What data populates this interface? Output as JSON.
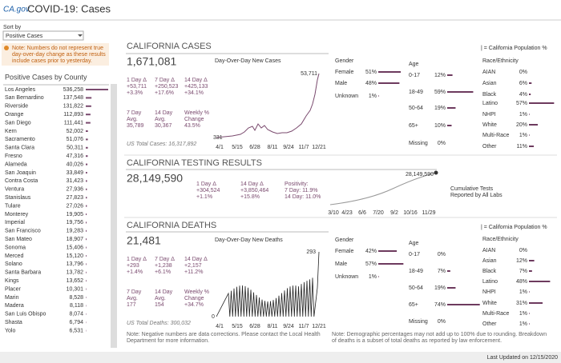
{
  "header": {
    "logo": "CA.gov",
    "title": "COVID-19: Cases",
    "updated": "Last Updated on 12/15/2020"
  },
  "sidebar": {
    "sort_label": "Sort by",
    "sort_value": "Positive Cases",
    "note": [
      "Note: Numbers do not represent true",
      "day-over-day change as these results",
      "include cases prior to yesterday."
    ],
    "list_title": "Positive Cases by County",
    "counties": [
      {
        "name": "Los Angeles",
        "value": 536258,
        "label": "536,258"
      },
      {
        "name": "San Bernardino",
        "value": 137548,
        "label": "137,548"
      },
      {
        "name": "Riverside",
        "value": 131822,
        "label": "131,822"
      },
      {
        "name": "Orange",
        "value": 112893,
        "label": "112,893"
      },
      {
        "name": "San Diego",
        "value": 111441,
        "label": "111,441"
      },
      {
        "name": "Kern",
        "value": 52002,
        "label": "52,002"
      },
      {
        "name": "Sacramento",
        "value": 51076,
        "label": "51,076"
      },
      {
        "name": "Santa Clara",
        "value": 50311,
        "label": "50,311"
      },
      {
        "name": "Fresno",
        "value": 47316,
        "label": "47,316"
      },
      {
        "name": "Alameda",
        "value": 40026,
        "label": "40,026"
      },
      {
        "name": "San Joaquin",
        "value": 33849,
        "label": "33,849"
      },
      {
        "name": "Contra Costa",
        "value": 31423,
        "label": "31,423"
      },
      {
        "name": "Ventura",
        "value": 27936,
        "label": "27,936"
      },
      {
        "name": "Stanislaus",
        "value": 27823,
        "label": "27,823"
      },
      {
        "name": "Tulare",
        "value": 27026,
        "label": "27,026"
      },
      {
        "name": "Monterey",
        "value": 19905,
        "label": "19,905"
      },
      {
        "name": "Imperial",
        "value": 19756,
        "label": "19,756"
      },
      {
        "name": "San Francisco",
        "value": 19283,
        "label": "19,283"
      },
      {
        "name": "San Mateo",
        "value": 18907,
        "label": "18,907"
      },
      {
        "name": "Sonoma",
        "value": 15406,
        "label": "15,406"
      },
      {
        "name": "Merced",
        "value": 15120,
        "label": "15,120"
      },
      {
        "name": "Solano",
        "value": 13796,
        "label": "13,796"
      },
      {
        "name": "Santa Barbara",
        "value": 13782,
        "label": "13,782"
      },
      {
        "name": "Kings",
        "value": 13652,
        "label": "13,652"
      },
      {
        "name": "Placer",
        "value": 10301,
        "label": "10,301"
      },
      {
        "name": "Marin",
        "value": 8528,
        "label": "8,528"
      },
      {
        "name": "Madera",
        "value": 8118,
        "label": "8,118"
      },
      {
        "name": "San Luis Obispo",
        "value": 8074,
        "label": "8,074"
      },
      {
        "name": "Shasta",
        "value": 6794,
        "label": "6,794"
      },
      {
        "name": "Yolo",
        "value": 6531,
        "label": "6,531"
      }
    ]
  },
  "cases": {
    "title": "CALIFORNIA CASES",
    "total": "1,671,081",
    "chart_title": "Day-Over-Day New Cases",
    "chart_max": "53,711",
    "chart_min": "331",
    "x_labels": [
      "4/1",
      "5/15",
      "6/28",
      "8/11",
      "9/24",
      "11/7",
      "12/21"
    ],
    "stats": [
      {
        "label": [
          "1 Day Δ"
        ],
        "values": [
          "+53,711",
          "+3.3%"
        ]
      },
      {
        "label": [
          "7 Day Δ"
        ],
        "values": [
          "+250,523",
          "+17.6%"
        ]
      },
      {
        "label": [
          "14 Day Δ"
        ],
        "values": [
          "+425,133",
          "+34.1%"
        ]
      }
    ],
    "avgs": [
      {
        "label": [
          "7 Day",
          "Avg."
        ],
        "value": "35,789"
      },
      {
        "label": [
          "14 Day",
          "Avg."
        ],
        "value": "30,367"
      },
      {
        "label": [
          "Weekly %",
          "Change"
        ],
        "value": "43.5%"
      }
    ],
    "us_total": "US Total Cases: 16,317,892",
    "population_key": "| = California Population %",
    "gender": {
      "title": "Gender",
      "items": [
        {
          "name": "Female",
          "value": 51,
          "label": "51%"
        },
        {
          "name": "Male",
          "value": 48,
          "label": "48%"
        },
        {
          "name": "Unknown",
          "value": 1,
          "label": "1%"
        }
      ]
    },
    "age": {
      "title": "Age",
      "items": [
        {
          "name": "0-17",
          "value": 12,
          "label": "12%"
        },
        {
          "name": "18-49",
          "value": 59,
          "label": "59%"
        },
        {
          "name": "50-64",
          "value": 19,
          "label": "19%"
        },
        {
          "name": "65+",
          "value": 10,
          "label": "10%"
        },
        {
          "name": "Missing",
          "value": 0,
          "label": "0%"
        }
      ]
    },
    "race": {
      "title": "Race/Ethnicity",
      "items": [
        {
          "name": "AIAN",
          "value": 0,
          "label": "0%"
        },
        {
          "name": "Asian",
          "value": 6,
          "label": "6%"
        },
        {
          "name": "Black",
          "value": 4,
          "label": "4%"
        },
        {
          "name": "Latino",
          "value": 57,
          "label": "57%"
        },
        {
          "name": "NHPI",
          "value": 1,
          "label": "1%"
        },
        {
          "name": "White",
          "value": 20,
          "label": "20%"
        },
        {
          "name": "Multi-Race",
          "value": 1,
          "label": "1%"
        },
        {
          "name": "Other",
          "value": 11,
          "label": "11%"
        }
      ]
    }
  },
  "testing": {
    "title": "CALIFORNIA TESTING RESULTS",
    "total": "28,149,590",
    "chart_max": "28,149,590",
    "x_labels": [
      "3/10",
      "4/23",
      "6/6",
      "7/20",
      "9/2",
      "10/16",
      "11/29"
    ],
    "stats": [
      {
        "label": [
          "1 Day Δ"
        ],
        "values": [
          "+304,524",
          "+1.1%"
        ]
      },
      {
        "label": [
          "14 Day Δ"
        ],
        "values": [
          "+3,850,464",
          "+15.8%"
        ]
      },
      {
        "label": [
          "Positivity:"
        ],
        "values": [
          "7 Day: 11.9%",
          "14 Day: 11.0%"
        ]
      }
    ],
    "caption": [
      "Cumulative Tests",
      "Reported by All Labs"
    ]
  },
  "deaths": {
    "title": "CALIFORNIA DEATHS",
    "total": "21,481",
    "chart_title": "Day-Over-Day New Deaths",
    "chart_max": "293",
    "chart_min": "0",
    "x_labels": [
      "4/1",
      "5/15",
      "6/28",
      "8/11",
      "9/24",
      "11/7",
      "12/21"
    ],
    "stats": [
      {
        "label": [
          "1 Day Δ"
        ],
        "values": [
          "+293",
          "+1.4%"
        ]
      },
      {
        "label": [
          "7 Day Δ"
        ],
        "values": [
          "+1,238",
          "+6.1%"
        ]
      },
      {
        "label": [
          "14 Day Δ"
        ],
        "values": [
          "+2,157",
          "+11.2%"
        ]
      }
    ],
    "avgs": [
      {
        "label": [
          "7 Day",
          "Avg."
        ],
        "value": "177"
      },
      {
        "label": [
          "14 Day",
          "Avg."
        ],
        "value": "154"
      },
      {
        "label": [
          "Weekly %",
          "Change"
        ],
        "value": "+34.7%"
      }
    ],
    "us_total": "US Total Deaths: 300,032",
    "population_key": "| = California Population %",
    "gender": {
      "title": "Gender",
      "items": [
        {
          "name": "Female",
          "value": 42,
          "label": "42%"
        },
        {
          "name": "Male",
          "value": 57,
          "label": "57%"
        },
        {
          "name": "Unknown",
          "value": 1,
          "label": "1%"
        }
      ]
    },
    "age": {
      "title": "Age",
      "items": [
        {
          "name": "0-17",
          "value": 0,
          "label": "0%"
        },
        {
          "name": "18-49",
          "value": 7,
          "label": "7%"
        },
        {
          "name": "50-64",
          "value": 19,
          "label": "19%"
        },
        {
          "name": "65+",
          "value": 74,
          "label": "74%"
        },
        {
          "name": "Missing",
          "value": 0,
          "label": "0%"
        }
      ]
    },
    "race": {
      "title": "Race/Ethnicity",
      "items": [
        {
          "name": "AIAN",
          "value": 0,
          "label": "0%"
        },
        {
          "name": "Asian",
          "value": 12,
          "label": "12%"
        },
        {
          "name": "Black",
          "value": 7,
          "label": "7%"
        },
        {
          "name": "Latino",
          "value": 48,
          "label": "48%"
        },
        {
          "name": "NHPI",
          "value": 1,
          "label": "1%"
        },
        {
          "name": "White",
          "value": 31,
          "label": "31%"
        },
        {
          "name": "Multi-Race",
          "value": 1,
          "label": "1%"
        },
        {
          "name": "Other",
          "value": 1,
          "label": "1%"
        }
      ]
    }
  },
  "notes": {
    "left": [
      "Note: Negative numbers are data corrections. Please contact the Local Health",
      "Department for more information."
    ],
    "right": [
      "Note: Demographic percentages may not add up to 100% due to rounding. Breakdown",
      "of deaths is a subset of total deaths as reported by law enforcement."
    ]
  }
}
